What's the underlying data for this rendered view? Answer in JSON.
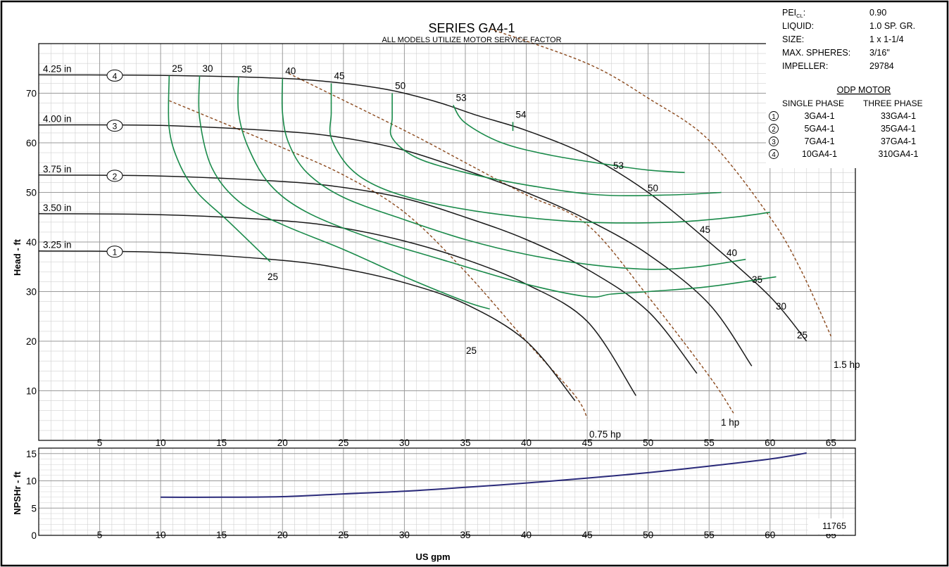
{
  "chart_data": {
    "type": "line",
    "title": "SERIES GA4-1",
    "subtitle": "ALL MODELS UTILIZE MOTOR SERVICE FACTOR",
    "xlabel": "US gpm",
    "catalog_number": "11765",
    "main": {
      "ylabel": "Head - ft",
      "xlim": [
        0,
        67
      ],
      "ylim": [
        0,
        80
      ],
      "xticks": [
        5,
        10,
        15,
        20,
        25,
        30,
        35,
        40,
        45,
        50,
        55,
        60,
        65
      ],
      "yticks": [
        10,
        20,
        30,
        40,
        50,
        60,
        70
      ],
      "grid": true,
      "impeller_curves": [
        {
          "name": "4.25 in",
          "marker": "4",
          "points": [
            [
              0,
              73.7
            ],
            [
              10,
              73.6
            ],
            [
              20,
              73
            ],
            [
              25,
              72
            ],
            [
              28,
              71
            ],
            [
              30,
              70
            ],
            [
              33,
              68
            ],
            [
              36,
              65.5
            ],
            [
              40,
              62.5
            ],
            [
              45,
              57.5
            ],
            [
              50,
              50
            ],
            [
              55,
              40
            ],
            [
              60,
              29
            ],
            [
              63,
              20
            ]
          ]
        },
        {
          "name": "4.00 in",
          "marker": "3",
          "points": [
            [
              0,
              63.6
            ],
            [
              10,
              63.5
            ],
            [
              20,
              62.3
            ],
            [
              25,
              61
            ],
            [
              30,
              58.5
            ],
            [
              35,
              54.5
            ],
            [
              40,
              50
            ],
            [
              45,
              44.5
            ],
            [
              50,
              37.5
            ],
            [
              55,
              27.5
            ],
            [
              58.5,
              15
            ]
          ]
        },
        {
          "name": "3.75 in",
          "marker": "2",
          "points": [
            [
              0,
              53.5
            ],
            [
              10,
              53.3
            ],
            [
              20,
              52.2
            ],
            [
              25,
              51
            ],
            [
              30,
              48.8
            ],
            [
              35,
              45
            ],
            [
              40,
              40.5
            ],
            [
              45,
              34.5
            ],
            [
              50,
              26
            ],
            [
              54,
              13.5
            ]
          ]
        },
        {
          "name": "3.50 in",
          "marker": "",
          "points": [
            [
              0,
              45.7
            ],
            [
              10,
              45.5
            ],
            [
              20,
              44.3
            ],
            [
              25,
              42.8
            ],
            [
              30,
              40.2
            ],
            [
              35,
              36.5
            ],
            [
              40,
              31.5
            ],
            [
              45,
              24
            ],
            [
              49,
              9
            ]
          ]
        },
        {
          "name": "3.25 in",
          "marker": "1",
          "points": [
            [
              0,
              38.2
            ],
            [
              10,
              37.9
            ],
            [
              20,
              36.3
            ],
            [
              25,
              34.6
            ],
            [
              30,
              31.8
            ],
            [
              35,
              27.5
            ],
            [
              40,
              20
            ],
            [
              44,
              8
            ]
          ]
        }
      ],
      "efficiency_curves": [
        {
          "name": "25",
          "label_pos": "top",
          "points": [
            [
              10.7,
              73.5
            ],
            [
              10.7,
              63
            ],
            [
              11.5,
              56
            ],
            [
              13,
              50
            ],
            [
              15.5,
              44.3
            ],
            [
              19,
              36
            ]
          ]
        },
        {
          "name": "30",
          "label_pos": "top",
          "points": [
            [
              13.2,
              73.5
            ],
            [
              13.2,
              65
            ],
            [
              14.2,
              55
            ],
            [
              16.5,
              48
            ],
            [
              20,
              43.5
            ],
            [
              25,
              38.5
            ],
            [
              30,
              33
            ],
            [
              35,
              28
            ],
            [
              37,
              26.5
            ]
          ]
        },
        {
          "name": "35",
          "label_pos": "top",
          "points": [
            [
              16.4,
              73.3
            ],
            [
              16.4,
              66
            ],
            [
              17.2,
              59
            ],
            [
              19,
              51.5
            ],
            [
              22,
              46
            ],
            [
              27,
              41
            ],
            [
              33,
              36.5
            ],
            [
              40,
              31.5
            ],
            [
              45,
              29
            ],
            [
              47,
              29.5
            ],
            [
              50,
              30
            ],
            [
              55,
              31
            ],
            [
              60.5,
              33
            ]
          ]
        },
        {
          "name": "40",
          "label_pos": "top",
          "points": [
            [
              20,
              73
            ],
            [
              20,
              66
            ],
            [
              20.5,
              60
            ],
            [
              22,
              54
            ],
            [
              25,
              49
            ],
            [
              30,
              44.5
            ],
            [
              35,
              40.5
            ],
            [
              40,
              37.5
            ],
            [
              45,
              35.5
            ],
            [
              50,
              34.5
            ],
            [
              54,
              35
            ],
            [
              58,
              36.5
            ]
          ]
        },
        {
          "name": "45",
          "label_pos": "top",
          "points": [
            [
              24,
              72
            ],
            [
              24,
              66
            ],
            [
              24,
              61
            ],
            [
              25.5,
              55
            ],
            [
              28,
              51
            ],
            [
              32,
              48
            ],
            [
              38,
              45.5
            ],
            [
              45,
              44
            ],
            [
              52,
              44
            ],
            [
              57,
              45
            ],
            [
              60,
              46
            ]
          ]
        },
        {
          "name": "50",
          "label_pos": "top",
          "points": [
            [
              29,
              70
            ],
            [
              29,
              65
            ],
            [
              29,
              61
            ],
            [
              31,
              57
            ],
            [
              35,
              54
            ],
            [
              40,
              51.5
            ],
            [
              46,
              49.5
            ],
            [
              52,
              49.5
            ],
            [
              56,
              50
            ]
          ]
        },
        {
          "name": "53",
          "label_pos": "top",
          "points": [
            [
              34,
              67.6
            ],
            [
              35,
              64
            ],
            [
              38,
              60
            ],
            [
              42,
              57.5
            ],
            [
              47,
              55.5
            ],
            [
              50,
              54.5
            ],
            [
              53,
              54
            ]
          ]
        },
        {
          "name": "54",
          "label_pos": "top",
          "points": [
            [
              38.9,
              64.2
            ],
            [
              38.9,
              62.4
            ]
          ]
        }
      ],
      "efficiency_end_labels": [
        "25",
        "30",
        "35",
        "40",
        "45",
        "50",
        "53"
      ],
      "horsepower_curves": [
        {
          "name": "0.75 hp",
          "points": [
            [
              10.7,
              68.5
            ],
            [
              20,
              59
            ],
            [
              25,
              53.5
            ],
            [
              30,
              46
            ],
            [
              35,
              34
            ],
            [
              40,
              20
            ],
            [
              44,
              9
            ],
            [
              45,
              4.5
            ]
          ]
        },
        {
          "name": "1 hp",
          "points": [
            [
              20.5,
              74
            ],
            [
              30,
              62.5
            ],
            [
              35,
              56
            ],
            [
              40,
              49.5
            ],
            [
              45,
              43.5
            ],
            [
              50,
              29
            ],
            [
              55,
              13
            ],
            [
              57,
              5.5
            ]
          ]
        },
        {
          "name": "1.5 hp",
          "points": [
            [
              37,
              83
            ],
            [
              45,
              76
            ],
            [
              50,
              69
            ],
            [
              55,
              60.5
            ],
            [
              60,
              45
            ],
            [
              62.5,
              34.5
            ],
            [
              65,
              21
            ]
          ]
        }
      ]
    },
    "npsh": {
      "ylabel": "NPSHr - ft",
      "ylim": [
        0,
        16
      ],
      "yticks": [
        0,
        5,
        10,
        15
      ],
      "xticks": [
        5,
        10,
        15,
        20,
        25,
        30,
        35,
        40,
        45,
        50,
        55,
        60,
        65
      ],
      "grid": true,
      "series": [
        {
          "name": "NPSHr",
          "points": [
            [
              10,
              7
            ],
            [
              15,
              7
            ],
            [
              20,
              7.1
            ],
            [
              25,
              7.6
            ],
            [
              30,
              8.1
            ],
            [
              35,
              8.8
            ],
            [
              40,
              9.6
            ],
            [
              45,
              10.5
            ],
            [
              50,
              11.5
            ],
            [
              55,
              12.7
            ],
            [
              60,
              14
            ],
            [
              63,
              15.1
            ]
          ]
        }
      ]
    },
    "info_panel": {
      "rows": [
        {
          "label": "PEI",
          "label_sub": "CL",
          "label_suffix": ":",
          "value": "0.90"
        },
        {
          "label": "LIQUID:",
          "label_sub": "",
          "label_suffix": "",
          "value": "1.0 SP. GR."
        },
        {
          "label": "SIZE:",
          "label_sub": "",
          "label_suffix": "",
          "value": "1 x 1-1/4"
        },
        {
          "label": "MAX. SPHERES:",
          "label_sub": "",
          "label_suffix": "",
          "value": "3/16\""
        },
        {
          "label": "IMPELLER:",
          "label_sub": "",
          "label_suffix": "",
          "value": "29784"
        }
      ],
      "motor_title": "ODP MOTOR",
      "col_single": "SINGLE PHASE",
      "col_three": "THREE PHASE",
      "models": [
        {
          "num": "1",
          "single": "3GA4-1",
          "three": "33GA4-1"
        },
        {
          "num": "2",
          "single": "5GA4-1",
          "three": "35GA4-1"
        },
        {
          "num": "3",
          "single": "7GA4-1",
          "three": "37GA4-1"
        },
        {
          "num": "4",
          "single": "10GA4-1",
          "three": "310GA4-1"
        }
      ]
    },
    "colors": {
      "impeller": "#1a1a1a",
      "efficiency": "#1a8a4a",
      "horsepower": "#8b4a1e",
      "npsh": "#2a2a7a",
      "grid_major": "#9a9a9a",
      "grid_minor": "#d0d0d0"
    }
  }
}
